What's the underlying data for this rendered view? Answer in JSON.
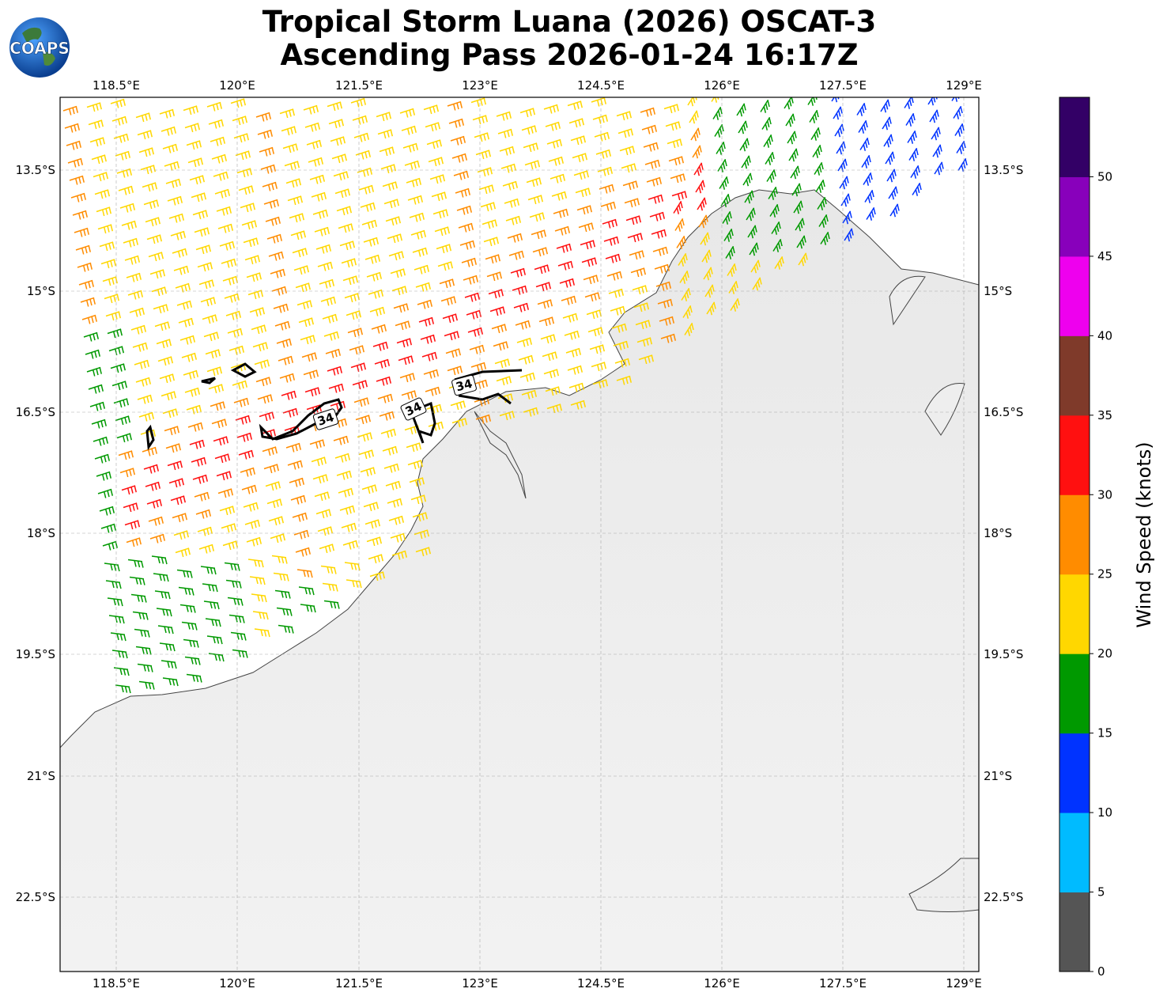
{
  "title_line1": "Tropical Storm Luana (2026) OSCAT-3",
  "title_line2": "Ascending Pass 2026-01-24 16:17Z",
  "logo_text": "COAPS",
  "map": {
    "lon_ticks": [
      "118.5°E",
      "120°E",
      "121.5°E",
      "123°E",
      "124.5°E",
      "126°E",
      "127.5°E",
      "129°E"
    ],
    "lat_ticks": [
      "13.5°S",
      "15°S",
      "16.5°S",
      "18°S",
      "19.5°S",
      "21°S",
      "22.5°S"
    ],
    "contour_label": "34"
  },
  "colorbar": {
    "label": "Wind Speed (knots)",
    "ticks": [
      "0",
      "5",
      "10",
      "15",
      "20",
      "25",
      "30",
      "35",
      "40",
      "45",
      "50"
    ],
    "colors": [
      "#555555",
      "#00bbff",
      "#0033ff",
      "#009900",
      "#ffd700",
      "#ff8c00",
      "#ff1010",
      "#7f3a2a",
      "#ee00ee",
      "#8800bb",
      "#330066"
    ]
  }
}
